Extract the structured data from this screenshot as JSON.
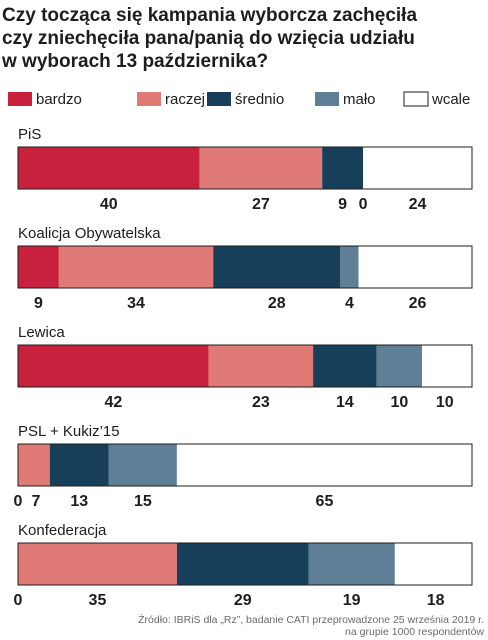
{
  "chart_data": {
    "type": "bar",
    "stacked": true,
    "orientation": "horizontal",
    "title_lines": [
      "Czy tocząca się kampania wyborcza zachęciła",
      "czy zniechęciła pana/panią do wzięcia udziału",
      "w wyborach 13 października?"
    ],
    "legend": [
      {
        "name": "bardzo",
        "color": "#c8213d"
      },
      {
        "name": "raczej",
        "color": "#e07a76"
      },
      {
        "name": "średnio",
        "color": "#173f59"
      },
      {
        "name": "mało",
        "color": "#5e7f96"
      },
      {
        "name": "wcale",
        "color": "#ffffff"
      }
    ],
    "legend_position": "top",
    "categories": [
      "PiS",
      "Koalicja Obywatelska",
      "Lewica",
      "PSL + Kukiz’15",
      "Konfederacja"
    ],
    "series": [
      {
        "name": "bardzo",
        "values": [
          40,
          9,
          42,
          0,
          0
        ]
      },
      {
        "name": "raczej",
        "values": [
          27,
          34,
          23,
          7,
          35
        ]
      },
      {
        "name": "średnio",
        "values": [
          9,
          28,
          14,
          13,
          29
        ]
      },
      {
        "name": "mało",
        "values": [
          0,
          4,
          10,
          15,
          19
        ]
      },
      {
        "name": "wcale",
        "values": [
          24,
          26,
          10,
          65,
          18
        ]
      }
    ],
    "value_labels": [
      [
        "40",
        "27",
        "9",
        "0",
        "24"
      ],
      [
        "9",
        "34",
        "28",
        "4",
        "26"
      ],
      [
        "42",
        "23",
        "14",
        "10",
        "10"
      ],
      [
        "0",
        "7",
        "13",
        "15",
        "65"
      ],
      [
        "0",
        "35",
        "29",
        "19",
        "18"
      ]
    ],
    "source_lines": [
      "Źródło: IBRiS dla „Rz”, badanie CATI przeprowadzone 25 września 2019 r.",
      "na grupie 1000 respondentów"
    ]
  }
}
